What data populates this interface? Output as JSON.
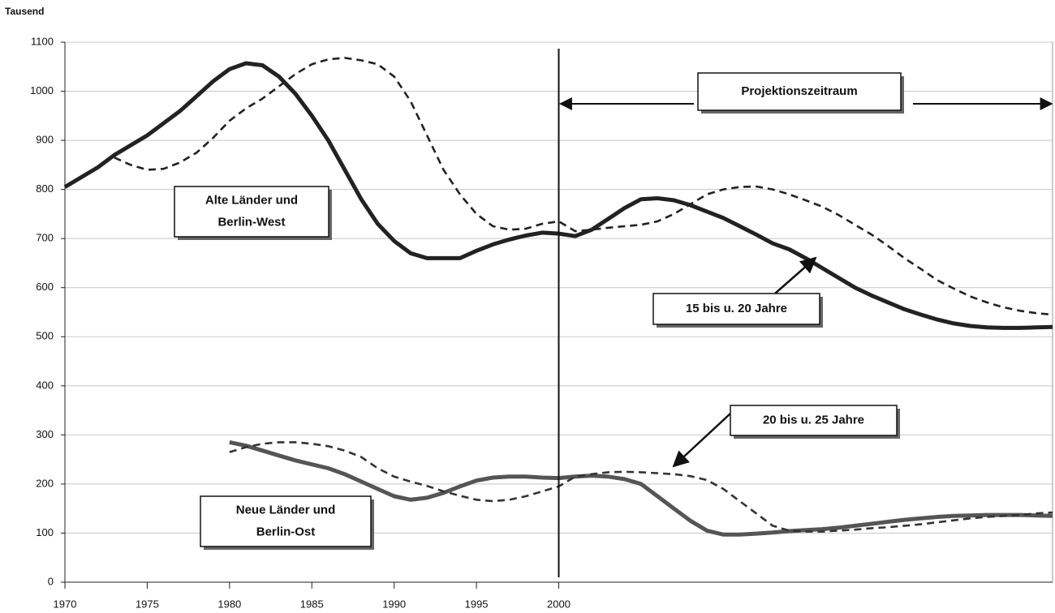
{
  "chart_data": {
    "type": "line",
    "y_label": "Tausend",
    "xlim": [
      1970,
      2030
    ],
    "xticks": [
      1970,
      1975,
      1980,
      1985,
      1990,
      1995,
      2000
    ],
    "ylim": [
      0,
      1100
    ],
    "yticks": [
      0,
      100,
      200,
      300,
      400,
      500,
      600,
      700,
      800,
      900,
      1000,
      1100
    ],
    "grid": true,
    "x": [
      1970,
      1971,
      1972,
      1973,
      1974,
      1975,
      1976,
      1977,
      1978,
      1979,
      1980,
      1981,
      1982,
      1983,
      1984,
      1985,
      1986,
      1987,
      1988,
      1989,
      1990,
      1991,
      1992,
      1993,
      1994,
      1995,
      1996,
      1997,
      1998,
      1999,
      2000,
      2001,
      2002,
      2003,
      2004,
      2005,
      2006,
      2007,
      2008,
      2009,
      2010,
      2011,
      2012,
      2013,
      2014,
      2015,
      2016,
      2017,
      2018,
      2019,
      2020,
      2021,
      2022,
      2023,
      2024,
      2025,
      2026,
      2027,
      2028,
      2029,
      2030
    ],
    "series": [
      {
        "color": "#222222",
        "style": "solid",
        "values": [
          805,
          825,
          845,
          870,
          890,
          910,
          935,
          960,
          990,
          1020,
          1045,
          1057,
          1053,
          1030,
          995,
          950,
          900,
          840,
          780,
          730,
          695,
          670,
          660,
          660,
          660,
          675,
          688,
          698,
          706,
          712,
          710,
          705,
          718,
          740,
          762,
          780,
          782,
          778,
          768,
          755,
          742,
          725,
          708,
          690,
          678,
          660,
          640,
          620,
          600,
          584,
          570,
          556,
          545,
          535,
          527,
          522,
          519,
          518,
          518,
          519,
          520
        ]
      },
      {
        "color": "#222222",
        "style": "dashed",
        "values": [
          null,
          null,
          null,
          865,
          850,
          840,
          842,
          855,
          875,
          905,
          940,
          965,
          985,
          1010,
          1035,
          1055,
          1065,
          1068,
          1063,
          1055,
          1030,
          980,
          910,
          840,
          790,
          750,
          725,
          718,
          720,
          730,
          735,
          715,
          718,
          722,
          725,
          728,
          735,
          750,
          770,
          790,
          800,
          805,
          806,
          800,
          790,
          778,
          765,
          748,
          728,
          708,
          685,
          660,
          638,
          615,
          598,
          582,
          570,
          560,
          553,
          548,
          545
        ]
      },
      {
        "color": "#555555",
        "style": "solid",
        "values": [
          null,
          null,
          null,
          null,
          null,
          null,
          null,
          null,
          null,
          null,
          285,
          278,
          268,
          258,
          248,
          240,
          232,
          220,
          205,
          190,
          175,
          168,
          172,
          182,
          195,
          207,
          213,
          215,
          215,
          213,
          212,
          215,
          217,
          215,
          210,
          200,
          175,
          150,
          125,
          105,
          97,
          97,
          99,
          101,
          104,
          106,
          108,
          111,
          115,
          119,
          123,
          127,
          130,
          133,
          135,
          136,
          137,
          137,
          137,
          136,
          135
        ]
      },
      {
        "color": "#333333",
        "style": "dashed",
        "values": [
          null,
          null,
          null,
          null,
          null,
          null,
          null,
          null,
          null,
          null,
          265,
          275,
          282,
          285,
          285,
          282,
          277,
          268,
          255,
          232,
          215,
          205,
          196,
          185,
          176,
          168,
          165,
          168,
          175,
          185,
          195,
          215,
          220,
          224,
          225,
          224,
          222,
          220,
          216,
          208,
          190,
          165,
          140,
          115,
          105,
          103,
          103,
          105,
          107,
          110,
          112,
          115,
          118,
          122,
          126,
          130,
          133,
          135,
          137,
          140,
          142
        ]
      }
    ],
    "divider_x": 2000,
    "annotations": [
      [
        "Projektionszeitraum"
      ],
      [
        "Alte Länder und",
        "Berlin-West"
      ],
      [
        "15 bis u. 20 Jahre"
      ],
      [
        "20 bis u. 25 Jahre"
      ],
      [
        "Neue Länder und",
        "Berlin-Ost"
      ]
    ]
  }
}
